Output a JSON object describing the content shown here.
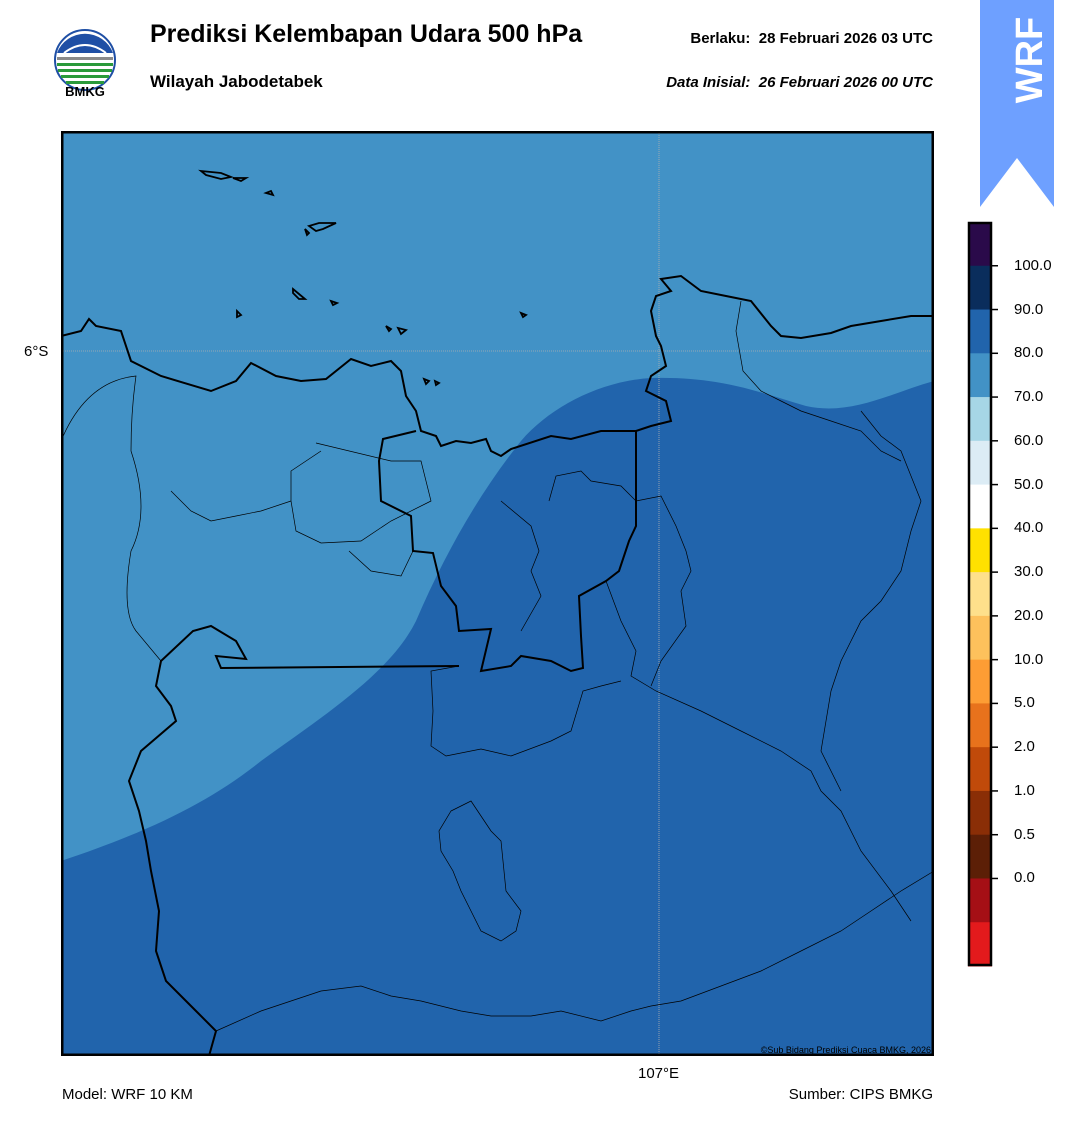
{
  "header": {
    "logo_text": "BMKG",
    "title": "Prediksi Kelembapan Udara 500 hPa",
    "subtitle": "Wilayah Jabodetabek",
    "valid_label": "Berlaku:",
    "valid_time": "28 Februari 2026 03 UTC",
    "init_label": "Data Inisial:",
    "init_time": "26 Februari 2026 00 UTC",
    "badge_text": "WRF"
  },
  "map": {
    "lat_label": "6°S",
    "lon_label": "107°E",
    "copyright": "©Sub Bidang Prediksi Cuaca BMKG, 2026",
    "fill_light_class": "70.0 - 80.0",
    "fill_dark_class": "80.0 - 90.0"
  },
  "colorbar": {
    "labels": [
      "100.0",
      "90.0",
      "80.0",
      "70.0",
      "60.0",
      "50.0",
      "40.0",
      "30.0",
      "20.0",
      "10.0",
      "5.0",
      "2.0",
      "1.0",
      "0.5",
      "0.0"
    ],
    "colors": [
      "#2a0a4a",
      "#0a2d5c",
      "#2164ac",
      "#4292c6",
      "#a6d6e6",
      "#dcecf5",
      "#ffffff",
      "#ffe100",
      "#fee08b",
      "#fdc15c",
      "#fd9d34",
      "#e8721c",
      "#c04a0a",
      "#8a2e06",
      "#5c1f06",
      "#a50f15",
      "#e31a1c"
    ],
    "color_names": [
      "purple",
      "navy",
      "dark-blue",
      "medium-blue",
      "light-blue",
      "pale-blue",
      "white",
      "yellow",
      "pale-yellow",
      "light-orange",
      "orange",
      "dark-orange",
      "red-brown",
      "brown",
      "dark-brown",
      "dark-red",
      "red"
    ]
  },
  "footer": {
    "model": "Model: WRF 10 KM",
    "source": "Sumber: CIPS BMKG"
  }
}
